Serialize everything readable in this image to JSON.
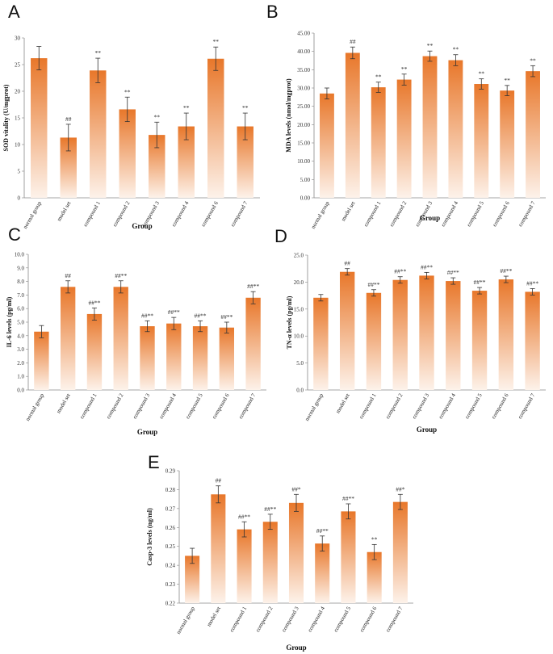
{
  "colors": {
    "bar_top": "#e8772a",
    "bar_bottom": "#fdf2ea",
    "axis": "#888888",
    "error": "#333333"
  },
  "chart_data": [
    {
      "panel": "A",
      "type": "bar",
      "title": "",
      "ylabel": "SOD vitality (U/mgprot)",
      "xlabel": "Group",
      "ylim": [
        0,
        30
      ],
      "ytick_step": 5,
      "tick_decimals": 0,
      "categories": [
        "normal group",
        "model set",
        "compound 1",
        "compound 2",
        "compound 3",
        "compound 4",
        "compound 6",
        "compound 7"
      ],
      "values": [
        26.2,
        11.3,
        23.9,
        16.6,
        11.8,
        13.4,
        26.1,
        13.4
      ],
      "errors": [
        2.2,
        2.5,
        2.3,
        2.3,
        2.4,
        2.5,
        2.2,
        2.5
      ],
      "annotations": [
        "",
        "##",
        "**",
        "**",
        "**",
        "**",
        "**",
        "**"
      ]
    },
    {
      "panel": "B",
      "type": "bar",
      "title": "",
      "ylabel": "MDA levels (nmol/mgprot)",
      "xlabel": "Group",
      "ylim": [
        0,
        45
      ],
      "ytick_step": 5,
      "tick_decimals": 2,
      "categories": [
        "normal group",
        "model set",
        "compound 1",
        "compound 2",
        "compound 3",
        "compound 4",
        "compound 5",
        "compound 6",
        "compound 7"
      ],
      "values": [
        28.5,
        39.6,
        30.2,
        32.3,
        38.7,
        37.6,
        31.1,
        29.3,
        34.6
      ],
      "errors": [
        1.5,
        1.6,
        1.4,
        1.5,
        1.4,
        1.5,
        1.4,
        1.4,
        1.5
      ],
      "annotations": [
        "",
        "##",
        "**",
        "**",
        "**",
        "**",
        "**",
        "**",
        "**"
      ]
    },
    {
      "panel": "C",
      "type": "bar",
      "title": "",
      "ylabel": "IL-6 levels (pg/ml)",
      "xlabel": "Group",
      "ylim": [
        0,
        10
      ],
      "ytick_step": 1,
      "tick_decimals": 1,
      "categories": [
        "normal group",
        "model set",
        "compound 1",
        "compound 2",
        "compound 3",
        "compound 4",
        "compound 5",
        "compound 6",
        "compound 7"
      ],
      "values": [
        4.3,
        7.6,
        5.6,
        7.6,
        4.7,
        4.9,
        4.7,
        4.6,
        6.8
      ],
      "errors": [
        0.45,
        0.45,
        0.45,
        0.45,
        0.4,
        0.45,
        0.4,
        0.4,
        0.45
      ],
      "annotations": [
        "",
        "##",
        "##**",
        "##**",
        "##**",
        "##**",
        "##**",
        "##**",
        "##**"
      ]
    },
    {
      "panel": "D",
      "type": "bar",
      "title": "",
      "ylabel": "TN-α levels (pg/ml)",
      "xlabel": "Group",
      "ylim": [
        0,
        25
      ],
      "ytick_step": 5,
      "tick_decimals": 1,
      "categories": [
        "normal group",
        "model set",
        "compound 1",
        "compound 2",
        "compound 3",
        "compound 4",
        "compound 5",
        "compound 6",
        "compound 7"
      ],
      "values": [
        17.1,
        21.9,
        18.0,
        20.4,
        21.2,
        20.2,
        18.4,
        20.5,
        18.2
      ],
      "errors": [
        0.6,
        0.6,
        0.6,
        0.6,
        0.6,
        0.6,
        0.6,
        0.6,
        0.6
      ],
      "annotations": [
        "",
        "##",
        "##**",
        "##**",
        "##**",
        "##**",
        "##**",
        "##**",
        "##**"
      ]
    },
    {
      "panel": "E",
      "type": "bar",
      "title": "",
      "ylabel": "Casp-3 levels (ng/ml)",
      "xlabel": "Group",
      "ylim": [
        0.22,
        0.29
      ],
      "ytick_step": 0.01,
      "tick_decimals": 2,
      "categories": [
        "normal group",
        "model set",
        "compound 1",
        "compound 2",
        "compound 3",
        "compound 4",
        "compound 5",
        "compound 6",
        "compound 7"
      ],
      "values": [
        0.245,
        0.2775,
        0.259,
        0.263,
        0.273,
        0.2515,
        0.2685,
        0.247,
        0.2735
      ],
      "errors": [
        0.004,
        0.0045,
        0.004,
        0.004,
        0.0045,
        0.004,
        0.004,
        0.004,
        0.004
      ],
      "annotations": [
        "",
        "##",
        "##**",
        "##**",
        "##*",
        "##**",
        "##**",
        "**",
        "##*"
      ]
    }
  ]
}
